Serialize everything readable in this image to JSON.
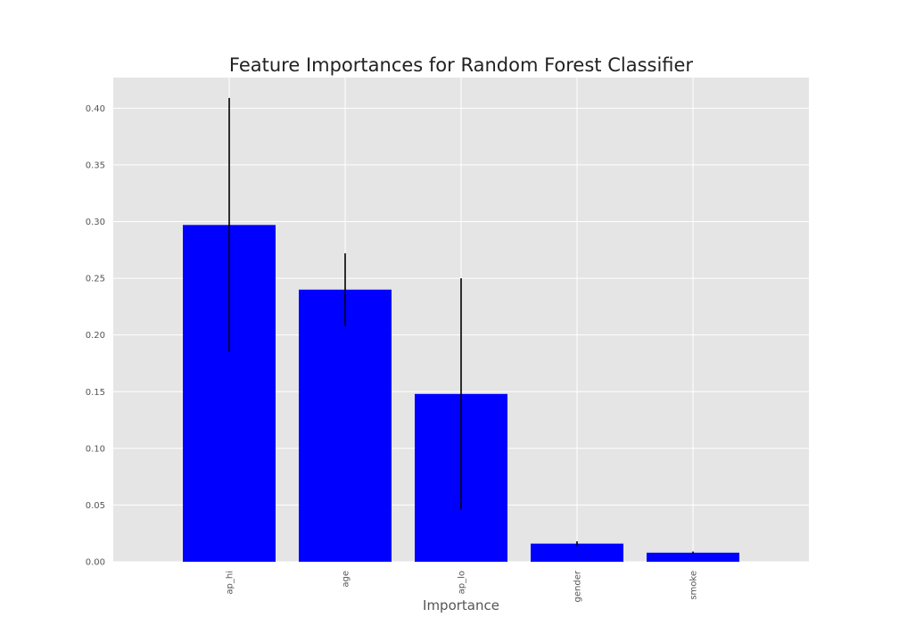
{
  "chart_data": {
    "type": "bar",
    "title": "Feature Importances for Random Forest Classifier",
    "xlabel": "Importance",
    "ylabel": "",
    "categories": [
      "ap_hi",
      "age",
      "ap_lo",
      "gender",
      "smoke"
    ],
    "values": [
      0.297,
      0.24,
      0.148,
      0.016,
      0.008
    ],
    "errors": [
      0.112,
      0.032,
      0.102,
      0.002,
      0.001
    ],
    "ylim": [
      0,
      0.427
    ],
    "yticks": [
      "0.00",
      "0.05",
      "0.10",
      "0.15",
      "0.20",
      "0.25",
      "0.30",
      "0.35",
      "0.40"
    ],
    "grid": true,
    "bar_color": "#0000ff",
    "error_color": "#000000",
    "background_color": "#e5e5e5",
    "grid_color": "#ffffff"
  }
}
